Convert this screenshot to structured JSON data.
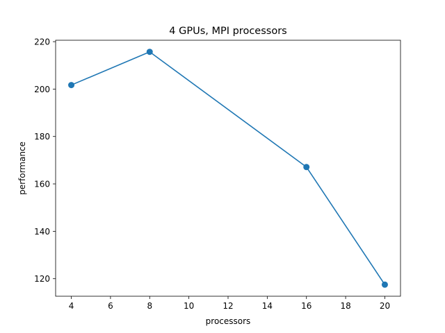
{
  "chart_data": {
    "type": "line",
    "title": "4 GPUs, MPI processors",
    "xlabel": "processors",
    "ylabel": "performance",
    "x": [
      4,
      8,
      16,
      20
    ],
    "series": [
      {
        "values": [
          201.7,
          215.7,
          167.1,
          117.5
        ],
        "color": "#1f77b4",
        "marker": "circle"
      }
    ],
    "xticks": [
      4,
      6,
      8,
      10,
      12,
      14,
      16,
      18,
      20
    ],
    "yticks": [
      120,
      140,
      160,
      180,
      200,
      220
    ],
    "xlim": [
      3.2,
      20.8
    ],
    "ylim": [
      112.6,
      220.6
    ],
    "grid": false,
    "legend": "none"
  }
}
